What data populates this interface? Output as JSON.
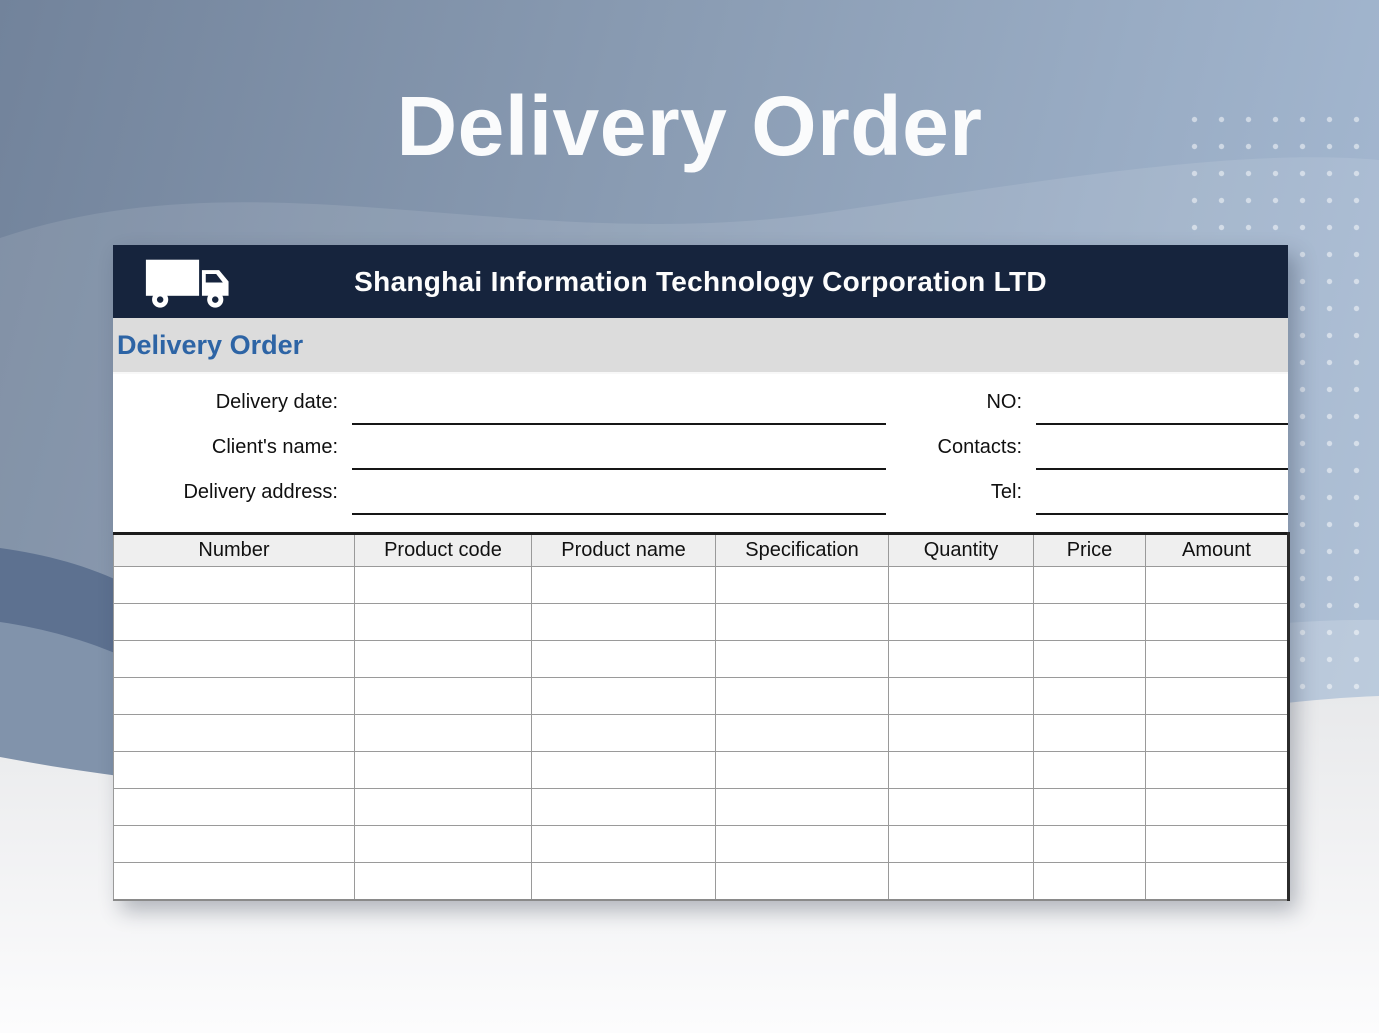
{
  "hero": {
    "title": "Delivery Order"
  },
  "document": {
    "company_name": "Shanghai Information Technology Corporation LTD",
    "subtitle": "Delivery Order",
    "fields": {
      "left": [
        {
          "label": "Delivery date:",
          "value": ""
        },
        {
          "label": "Client's name:",
          "value": ""
        },
        {
          "label": "Delivery address:",
          "value": ""
        }
      ],
      "right": [
        {
          "label": "NO:",
          "value": ""
        },
        {
          "label": "Contacts:",
          "value": ""
        },
        {
          "label": "Tel:",
          "value": ""
        }
      ]
    },
    "table": {
      "columns": [
        "Number",
        "Product code",
        "Product name",
        "Specification",
        "Quantity",
        "Price",
        "Amount"
      ],
      "empty_row_count": 9
    }
  },
  "icons": {
    "truck": "truck-icon"
  },
  "colors": {
    "header_navy": "#16243D",
    "subtitle_blue": "#2D64A5",
    "band_gray": "#DCDCDC",
    "table_header_gray": "#EFEFEF",
    "background_slate": "#72839B",
    "background_light_blue": "#A9BDD6",
    "wave_dark_slate": "#5D7190",
    "wave_medium": "#8193AB",
    "wave_bottom_gray": "#E8E9EB"
  }
}
